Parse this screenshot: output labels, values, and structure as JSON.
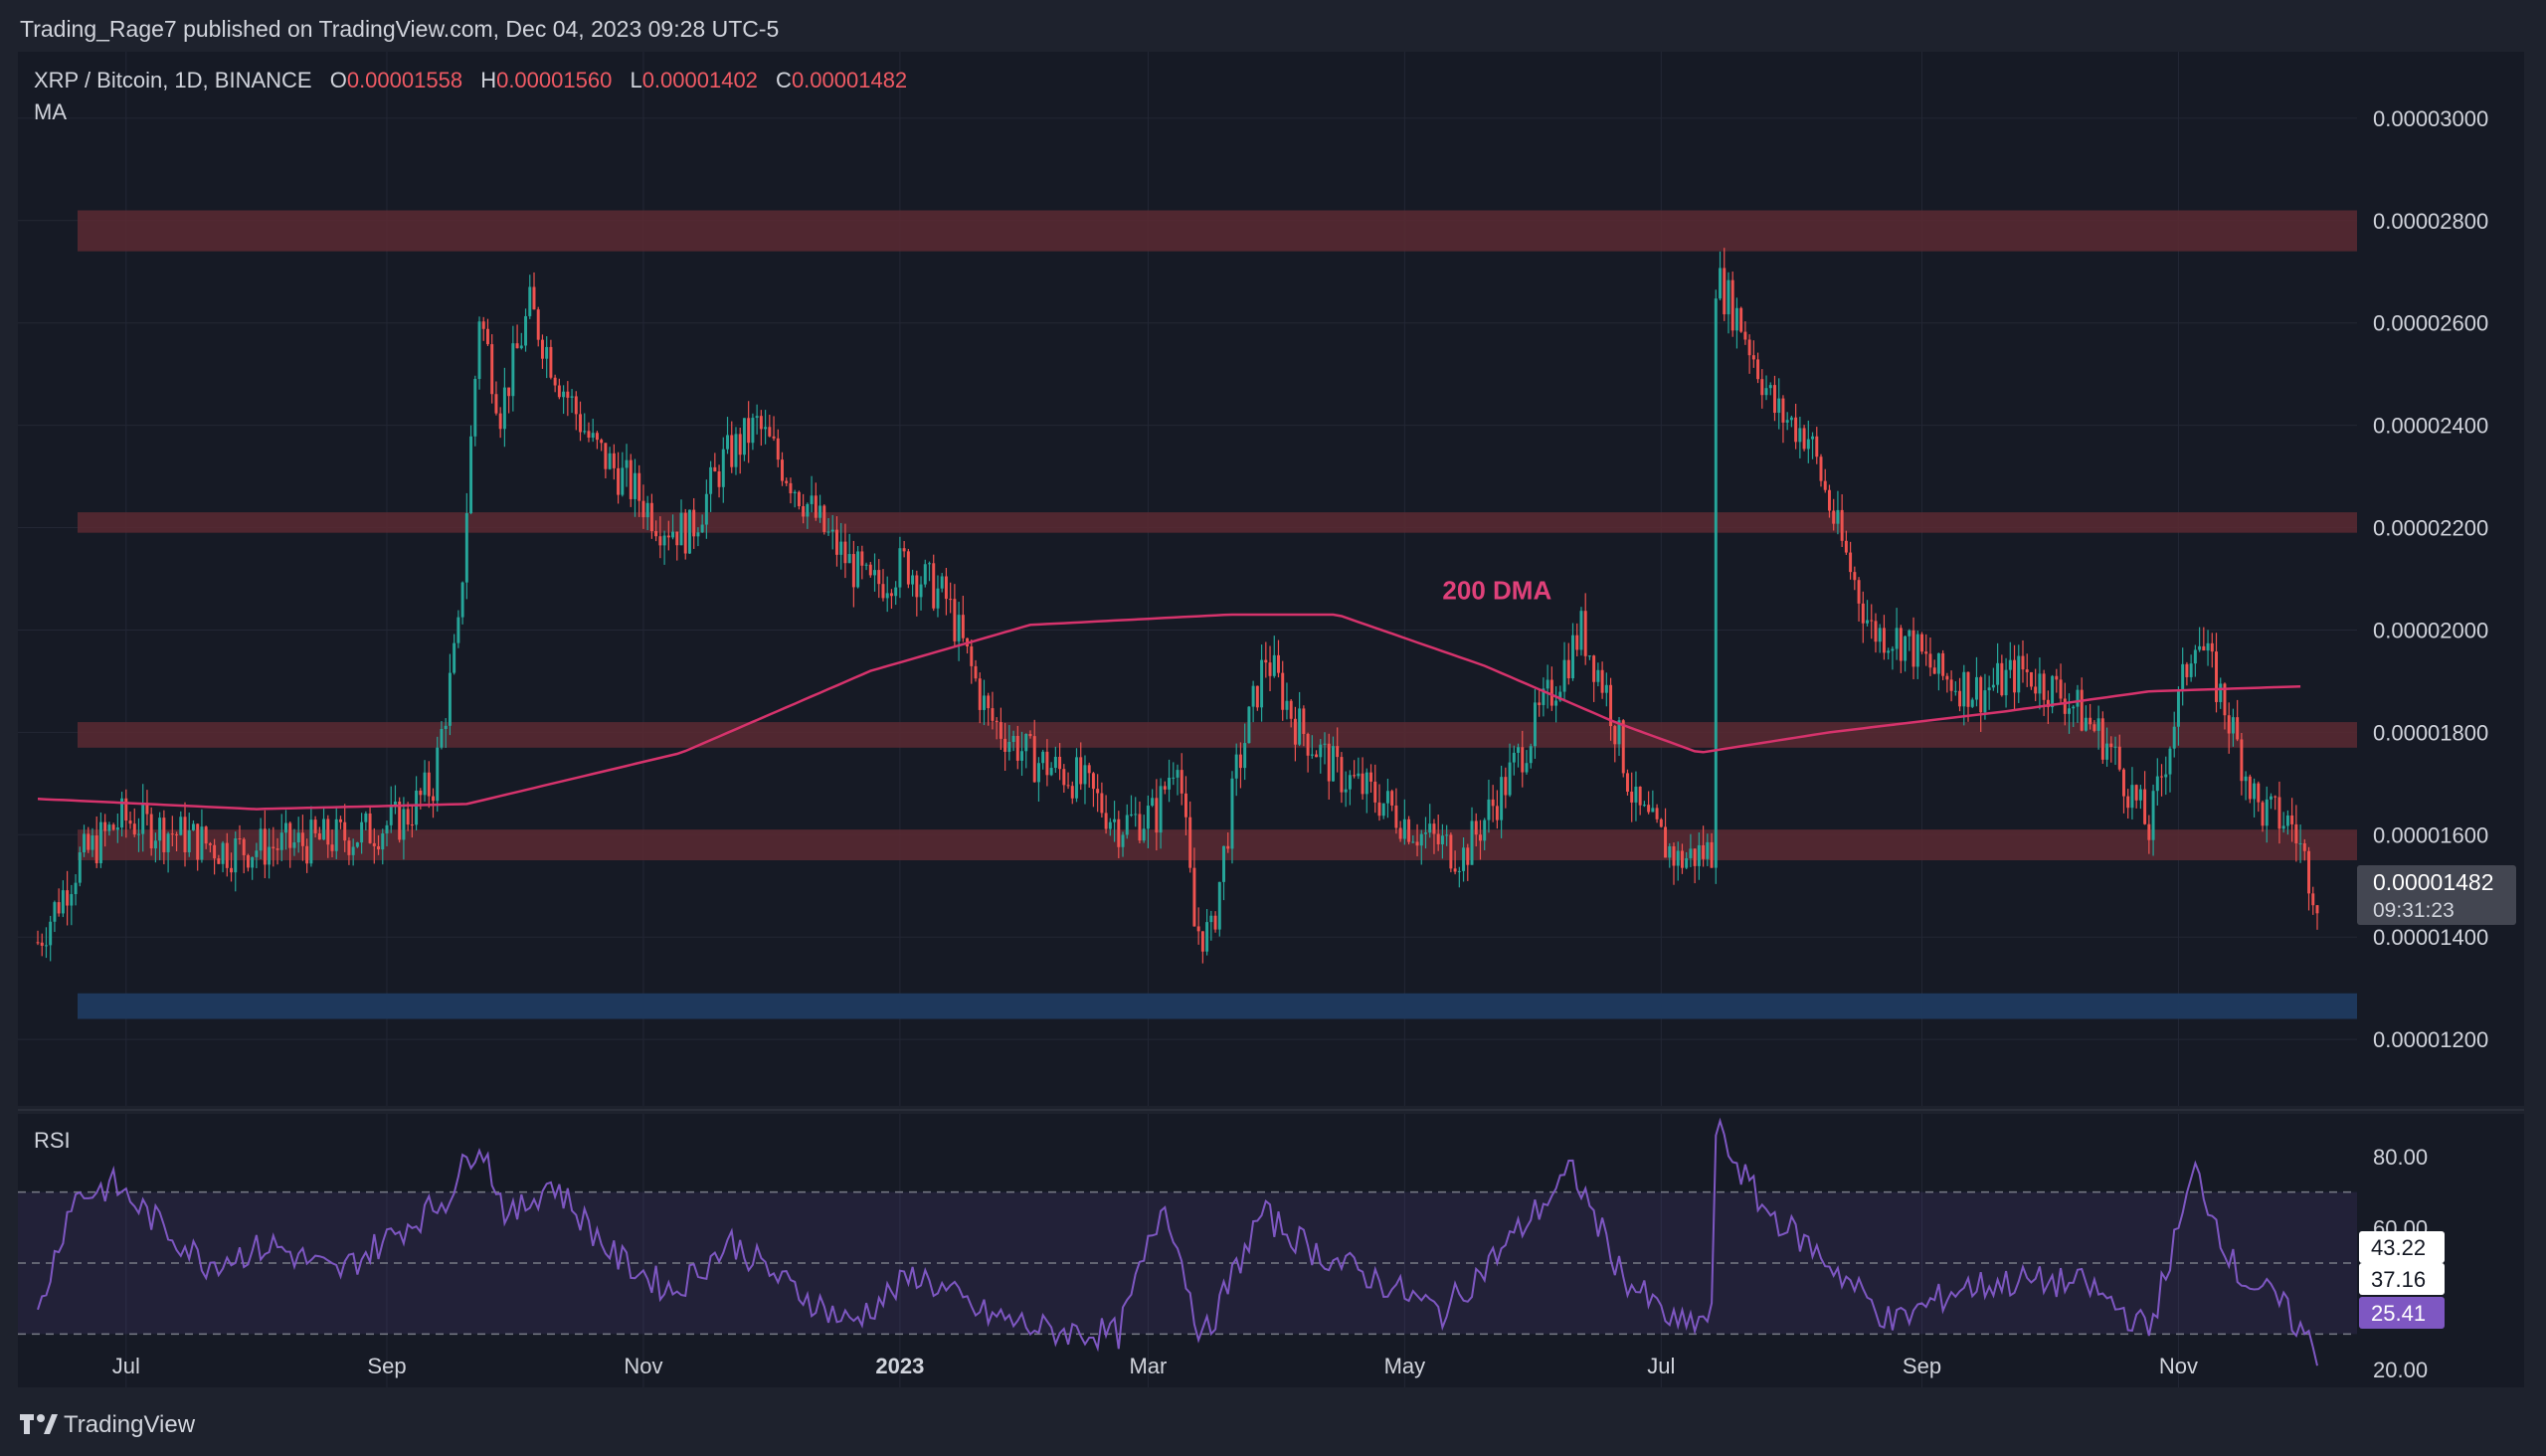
{
  "header": {
    "published": "Trading_Rage7 published on TradingView.com, Dec 04, 2023 09:28 UTC-5"
  },
  "legend": {
    "symbol": "XRP / Bitcoin, 1D, BINANCE",
    "o_label": "O",
    "o_value": "0.00001558",
    "h_label": "H",
    "h_value": "0.00001560",
    "l_label": "L",
    "l_value": "0.00001402",
    "c_label": "C",
    "c_value": "0.00001482",
    "ma_label": "MA"
  },
  "annotation": {
    "dma_label": "200 DMA"
  },
  "price_badge": {
    "price": "0.00001482",
    "countdown": "09:31:23"
  },
  "rsi": {
    "label": "RSI",
    "badges": [
      "43.22",
      "37.16",
      "25.41"
    ],
    "upper_band": 70,
    "lower_band": 30,
    "mid": 50
  },
  "footer": {
    "brand": "TradingView"
  },
  "colors": {
    "bg": "#161a25",
    "panel_bg": "#1e222d",
    "up": "#26a69a",
    "down": "#ef5350",
    "zone_red": "#5a2a33",
    "zone_blue": "#1f3a5f",
    "ma": "#d6336c",
    "rsi": "#7e57c2",
    "text": "#d1d4dc",
    "ohlc_value": "#f05a64"
  },
  "chart_data": [
    {
      "type": "candlestick",
      "title": "XRP / Bitcoin, 1D, BINANCE",
      "ylim": [
        1.07e-05,
        3.13e-05
      ],
      "y_ticks": [
        "0.00003000",
        "0.00002800",
        "0.00002600",
        "0.00002400",
        "0.00002200",
        "0.00002000",
        "0.00001800",
        "0.00001600",
        "0.00001400",
        "0.00001200"
      ],
      "x_tick_labels": [
        "Jul",
        "Sep",
        "Nov",
        "2023",
        "Mar",
        "May",
        "Jul",
        "Sep",
        "Nov"
      ],
      "x_tick_dates": [
        "2022-07-01",
        "2022-09-01",
        "2022-11-01",
        "2023-01-01",
        "2023-03-01",
        "2023-05-01",
        "2023-07-01",
        "2023-09-01",
        "2023-11-01"
      ],
      "date_range": [
        "2022-06-10",
        "2023-12-04"
      ],
      "close_path": [
        [
          "2022-06-10",
          1.39e-05
        ],
        [
          "2022-06-20",
          1.55e-05
        ],
        [
          "2022-06-30",
          1.63e-05
        ],
        [
          "2022-07-10",
          1.61e-05
        ],
        [
          "2022-07-25",
          1.57e-05
        ],
        [
          "2022-08-10",
          1.58e-05
        ],
        [
          "2022-08-25",
          1.6e-05
        ],
        [
          "2022-09-05",
          1.63e-05
        ],
        [
          "2022-09-12",
          1.7e-05
        ],
        [
          "2022-09-18",
          1.99e-05
        ],
        [
          "2022-09-23",
          2.62e-05
        ],
        [
          "2022-09-28",
          2.43e-05
        ],
        [
          "2022-10-05",
          2.63e-05
        ],
        [
          "2022-10-12",
          2.49e-05
        ],
        [
          "2022-10-20",
          2.36e-05
        ],
        [
          "2022-10-28",
          2.29e-05
        ],
        [
          "2022-11-05",
          2.21e-05
        ],
        [
          "2022-11-12",
          2.19e-05
        ],
        [
          "2022-11-20",
          2.33e-05
        ],
        [
          "2022-11-28",
          2.4e-05
        ],
        [
          "2022-12-05",
          2.31e-05
        ],
        [
          "2022-12-15",
          2.18e-05
        ],
        [
          "2022-12-25",
          2.08e-05
        ],
        [
          "2023-01-02",
          2.13e-05
        ],
        [
          "2023-01-12",
          2.06e-05
        ],
        [
          "2023-01-22",
          1.83e-05
        ],
        [
          "2023-02-01",
          1.75e-05
        ],
        [
          "2023-02-12",
          1.71e-05
        ],
        [
          "2023-02-22",
          1.62e-05
        ],
        [
          "2023-03-03",
          1.64e-05
        ],
        [
          "2023-03-08",
          1.77e-05
        ],
        [
          "2023-03-12",
          1.42e-05
        ],
        [
          "2023-03-16",
          1.4e-05
        ],
        [
          "2023-03-22",
          1.72e-05
        ],
        [
          "2023-03-29",
          1.95e-05
        ],
        [
          "2023-04-05",
          1.82e-05
        ],
        [
          "2023-04-15",
          1.72e-05
        ],
        [
          "2023-04-25",
          1.67e-05
        ],
        [
          "2023-05-05",
          1.6e-05
        ],
        [
          "2023-05-15",
          1.56e-05
        ],
        [
          "2023-05-25",
          1.7e-05
        ],
        [
          "2023-06-05",
          1.88e-05
        ],
        [
          "2023-06-12",
          2e-05
        ],
        [
          "2023-06-18",
          1.88e-05
        ],
        [
          "2023-06-25",
          1.65e-05
        ],
        [
          "2023-07-05",
          1.55e-05
        ],
        [
          "2023-07-13",
          1.57e-05
        ],
        [
          "2023-07-14",
          2.69e-05
        ],
        [
          "2023-07-20",
          2.6e-05
        ],
        [
          "2023-07-28",
          2.43e-05
        ],
        [
          "2023-08-05",
          2.38e-05
        ],
        [
          "2023-08-12",
          2.19e-05
        ],
        [
          "2023-08-20",
          2e-05
        ],
        [
          "2023-08-28",
          1.98e-05
        ],
        [
          "2023-09-05",
          1.91e-05
        ],
        [
          "2023-09-15",
          1.88e-05
        ],
        [
          "2023-09-25",
          1.92e-05
        ],
        [
          "2023-10-05",
          1.87e-05
        ],
        [
          "2023-10-15",
          1.78e-05
        ],
        [
          "2023-10-25",
          1.61e-05
        ],
        [
          "2023-11-05",
          2e-05
        ],
        [
          "2023-11-12",
          1.85e-05
        ],
        [
          "2023-11-20",
          1.65e-05
        ],
        [
          "2023-11-28",
          1.62e-05
        ],
        [
          "2023-12-04",
          1.48e-05
        ]
      ],
      "ma_200_path": [
        [
          "2022-06-10",
          1.67e-05
        ],
        [
          "2022-08-01",
          1.65e-05
        ],
        [
          "2022-09-20",
          1.66e-05
        ],
        [
          "2022-11-10",
          1.76e-05
        ],
        [
          "2022-12-25",
          1.92e-05
        ],
        [
          "2023-02-01",
          2.01e-05
        ],
        [
          "2023-03-20",
          2.03e-05
        ],
        [
          "2023-04-15",
          2.03e-05
        ],
        [
          "2023-05-20",
          1.93e-05
        ],
        [
          "2023-06-20",
          1.82e-05
        ],
        [
          "2023-07-10",
          1.76e-05
        ],
        [
          "2023-08-10",
          1.8e-05
        ],
        [
          "2023-09-20",
          1.84e-05
        ],
        [
          "2023-10-25",
          1.88e-05
        ],
        [
          "2023-12-01",
          1.89e-05
        ]
      ],
      "horizontal_zones": [
        {
          "color": "red",
          "from": 2.74e-05,
          "to": 2.82e-05
        },
        {
          "color": "red",
          "from": 2.19e-05,
          "to": 2.23e-05
        },
        {
          "color": "red",
          "from": 1.77e-05,
          "to": 1.82e-05
        },
        {
          "color": "red",
          "from": 1.55e-05,
          "to": 1.61e-05
        },
        {
          "color": "blue",
          "from": 1.24e-05,
          "to": 1.29e-05
        }
      ],
      "annotations": [
        {
          "text": "200 DMA",
          "x": "2023-05-10",
          "y": 2.06e-05
        }
      ],
      "last_price": 1.482e-05
    },
    {
      "type": "line",
      "title": "RSI",
      "ylim": [
        15,
        92
      ],
      "y_ticks": [
        "80.00",
        "60.00",
        "20.00"
      ],
      "bands": [
        30,
        50,
        70
      ],
      "badge_values": [
        43.22,
        37.16,
        25.41
      ],
      "values": [
        [
          "2022-06-10",
          35
        ],
        [
          "2022-06-18",
          68
        ],
        [
          "2022-06-28",
          72
        ],
        [
          "2022-07-08",
          62
        ],
        [
          "2022-07-20",
          50
        ],
        [
          "2022-08-05",
          55
        ],
        [
          "2022-08-20",
          47
        ],
        [
          "2022-09-05",
          60
        ],
        [
          "2022-09-15",
          68
        ],
        [
          "2022-09-23",
          85
        ],
        [
          "2022-09-30",
          62
        ],
        [
          "2022-10-10",
          73
        ],
        [
          "2022-10-25",
          52
        ],
        [
          "2022-11-08",
          42
        ],
        [
          "2022-11-22",
          56
        ],
        [
          "2022-12-05",
          44
        ],
        [
          "2022-12-20",
          33
        ],
        [
          "2023-01-05",
          47
        ],
        [
          "2023-01-20",
          36
        ],
        [
          "2023-02-05",
          31
        ],
        [
          "2023-02-22",
          30
        ],
        [
          "2023-03-05",
          68
        ],
        [
          "2023-03-14",
          28
        ],
        [
          "2023-03-28",
          64
        ],
        [
          "2023-04-10",
          53
        ],
        [
          "2023-04-25",
          45
        ],
        [
          "2023-05-10",
          36
        ],
        [
          "2023-05-25",
          55
        ],
        [
          "2023-06-10",
          76
        ],
        [
          "2023-06-22",
          46
        ],
        [
          "2023-07-05",
          32
        ],
        [
          "2023-07-13",
          35
        ],
        [
          "2023-07-14",
          88
        ],
        [
          "2023-07-25",
          66
        ],
        [
          "2023-08-10",
          50
        ],
        [
          "2023-08-25",
          33
        ],
        [
          "2023-09-10",
          43
        ],
        [
          "2023-09-25",
          45
        ],
        [
          "2023-10-10",
          44
        ],
        [
          "2023-10-25",
          31
        ],
        [
          "2023-11-05",
          76
        ],
        [
          "2023-11-15",
          47
        ],
        [
          "2023-11-25",
          39
        ],
        [
          "2023-12-04",
          25
        ]
      ]
    }
  ]
}
